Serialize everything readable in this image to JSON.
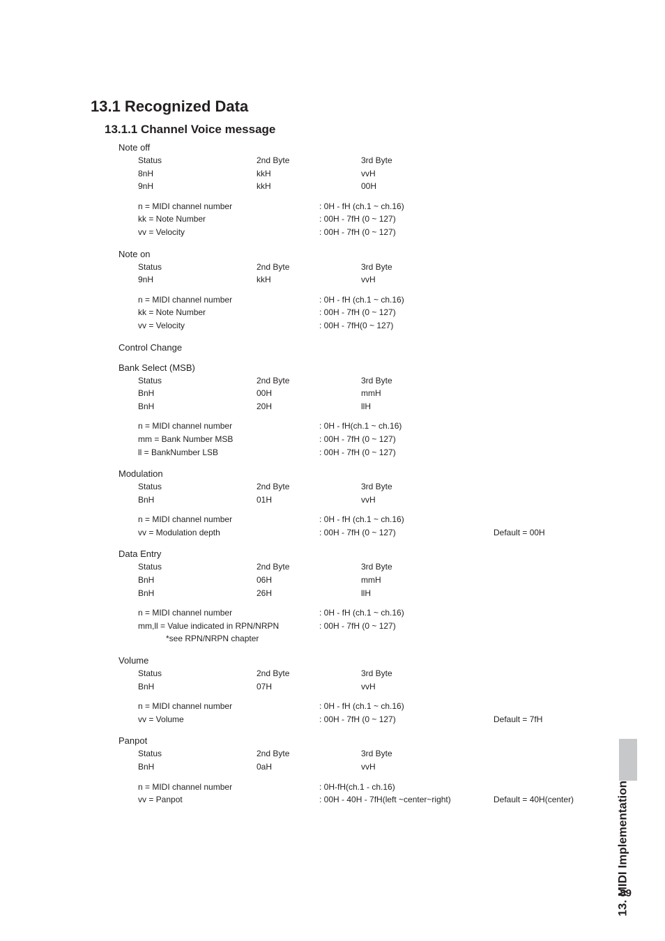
{
  "h1": "13.1 Recognized Data",
  "h2": "13.1.1 Channel Voice message",
  "sideTab": "13. MIDI Implementation",
  "pageNumber": "89",
  "colHeaders": {
    "c1": "Status",
    "c2": "2nd Byte",
    "c3": "3rd Byte"
  },
  "noteOff": {
    "title": "Note off",
    "rows": [
      {
        "c1": "8nH",
        "c2": "kkH",
        "c3": "vvH"
      },
      {
        "c1": "9nH",
        "c2": "kkH",
        "c3": "00H"
      }
    ],
    "params": [
      {
        "k": "n = MIDI channel number",
        "v": ": 0H - fH (ch.1 ~ ch.16)"
      },
      {
        "k": "kk = Note Number",
        "v": ": 00H - 7fH (0 ~ 127)"
      },
      {
        "k": "vv = Velocity",
        "v": ": 00H - 7fH (0 ~ 127)"
      }
    ]
  },
  "noteOn": {
    "title": "Note on",
    "rows": [
      {
        "c1": "9nH",
        "c2": "kkH",
        "c3": "vvH"
      }
    ],
    "params": [
      {
        "k": "n = MIDI channel number",
        "v": ": 0H - fH (ch.1 ~ ch.16)"
      },
      {
        "k": "kk = Note Number",
        "v": ": 00H - 7fH (0 ~ 127)"
      },
      {
        "k": "vv = Velocity",
        "v": ": 00H - 7fH(0 ~ 127)"
      }
    ]
  },
  "controlChange": {
    "title": "Control Change"
  },
  "bankSelect": {
    "title": "Bank Select (MSB)",
    "rows": [
      {
        "c1": "BnH",
        "c2": "00H",
        "c3": "mmH"
      },
      {
        "c1": "BnH",
        "c2": "20H",
        "c3": "llH"
      }
    ],
    "params": [
      {
        "k": "n = MIDI channel number",
        "v": ": 0H - fH(ch.1 ~ ch.16)"
      },
      {
        "k": "mm = Bank Number MSB",
        "v": ": 00H - 7fH (0 ~ 127)"
      },
      {
        "k": "ll = BankNumber LSB",
        "v": ": 00H - 7fH (0 ~ 127)"
      }
    ]
  },
  "modulation": {
    "title": "Modulation",
    "rows": [
      {
        "c1": "BnH",
        "c2": "01H",
        "c3": "vvH"
      }
    ],
    "params": [
      {
        "k": "n = MIDI channel number",
        "v": ": 0H - fH (ch.1 ~ ch.16)"
      },
      {
        "k": "vv = Modulation depth",
        "v": ": 00H - 7fH (0 ~ 127)",
        "d": "Default = 00H"
      }
    ]
  },
  "dataEntry": {
    "title": "Data Entry",
    "rows": [
      {
        "c1": "BnH",
        "c2": "06H",
        "c3": "mmH"
      },
      {
        "c1": "BnH",
        "c2": "26H",
        "c3": "llH"
      }
    ],
    "params": [
      {
        "k": "n = MIDI channel number",
        "v": ": 0H - fH (ch.1 ~ ch.16)"
      },
      {
        "k": "mm,ll = Value indicated in RPN/NRPN",
        "v": ": 00H - 7fH (0 ~ 127)"
      },
      {
        "k": "            *see RPN/NRPN chapter",
        "v": ""
      }
    ]
  },
  "volume": {
    "title": "Volume",
    "rows": [
      {
        "c1": "BnH",
        "c2": "07H",
        "c3": "vvH"
      }
    ],
    "params": [
      {
        "k": "n = MIDI channel number",
        "v": ": 0H - fH (ch.1 ~ ch.16)"
      },
      {
        "k": "vv = Volume",
        "v": ": 00H - 7fH (0 ~ 127)",
        "d": "Default = 7fH"
      }
    ]
  },
  "panpot": {
    "title": "Panpot",
    "rows": [
      {
        "c1": "BnH",
        "c2": "0aH",
        "c3": "vvH"
      }
    ],
    "params": [
      {
        "k": "n = MIDI channel number",
        "v": ": 0H-fH(ch.1 - ch.16)"
      },
      {
        "k": "vv = Panpot",
        "v": ": 00H - 40H - 7fH(left ~center~right)",
        "d": "Default = 40H(center)"
      }
    ]
  }
}
